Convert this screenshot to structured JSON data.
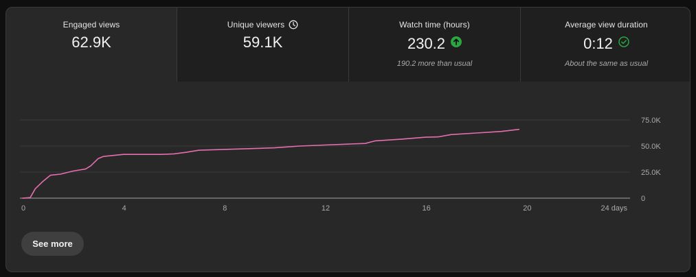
{
  "metrics": [
    {
      "label": "Engaged views",
      "value": "62.9K",
      "note": ""
    },
    {
      "label": "Unique viewers",
      "value": "59.1K",
      "note": "",
      "label_icon": "clock-icon"
    },
    {
      "label": "Watch time (hours)",
      "value": "230.2",
      "note": "190.2 more than usual",
      "value_icon": "arrow-up-circle-icon"
    },
    {
      "label": "Average view duration",
      "value": "0:12",
      "note": "About the same as usual",
      "value_icon": "check-circle-icon"
    }
  ],
  "chart_data": {
    "type": "line",
    "x": [
      0,
      0.3,
      0.5,
      0.8,
      1.1,
      1.5,
      2.0,
      2.5,
      2.7,
      3.0,
      3.2,
      3.6,
      4.0,
      4.5,
      5.0,
      5.5,
      6.0,
      6.5,
      7.0,
      8.0,
      9.0,
      10.0,
      11.0,
      12.0,
      13.0,
      13.6,
      14.0,
      15.0,
      16.0,
      16.5,
      17.0,
      18.0,
      19.0,
      19.7
    ],
    "series": [
      {
        "values": [
          0,
          0.5,
          9,
          16,
          22,
          23,
          26,
          28,
          31,
          38,
          40,
          41,
          42,
          42,
          42,
          42,
          42.5,
          44,
          46,
          46.8,
          47.5,
          48.3,
          50,
          51,
          52,
          52.5,
          55,
          56.5,
          58.5,
          58.8,
          61,
          62.5,
          64,
          66
        ],
        "color": "#e76fb0"
      }
    ],
    "xlim": [
      0,
      24
    ],
    "ylim": [
      0,
      75000
    ],
    "y_ticks": [
      "0",
      "25.0K",
      "50.0K",
      "75.0K"
    ],
    "x_ticks": [
      "0",
      "4",
      "8",
      "12",
      "16",
      "20",
      "24 days"
    ],
    "grid": true,
    "y_axis_side": "right"
  },
  "buttons": {
    "see_more": "See more"
  },
  "colors": {
    "background": "#282828",
    "metric_panel": "#1f1f1f",
    "line": "#e76fb0",
    "up_green": "#2ba640"
  }
}
